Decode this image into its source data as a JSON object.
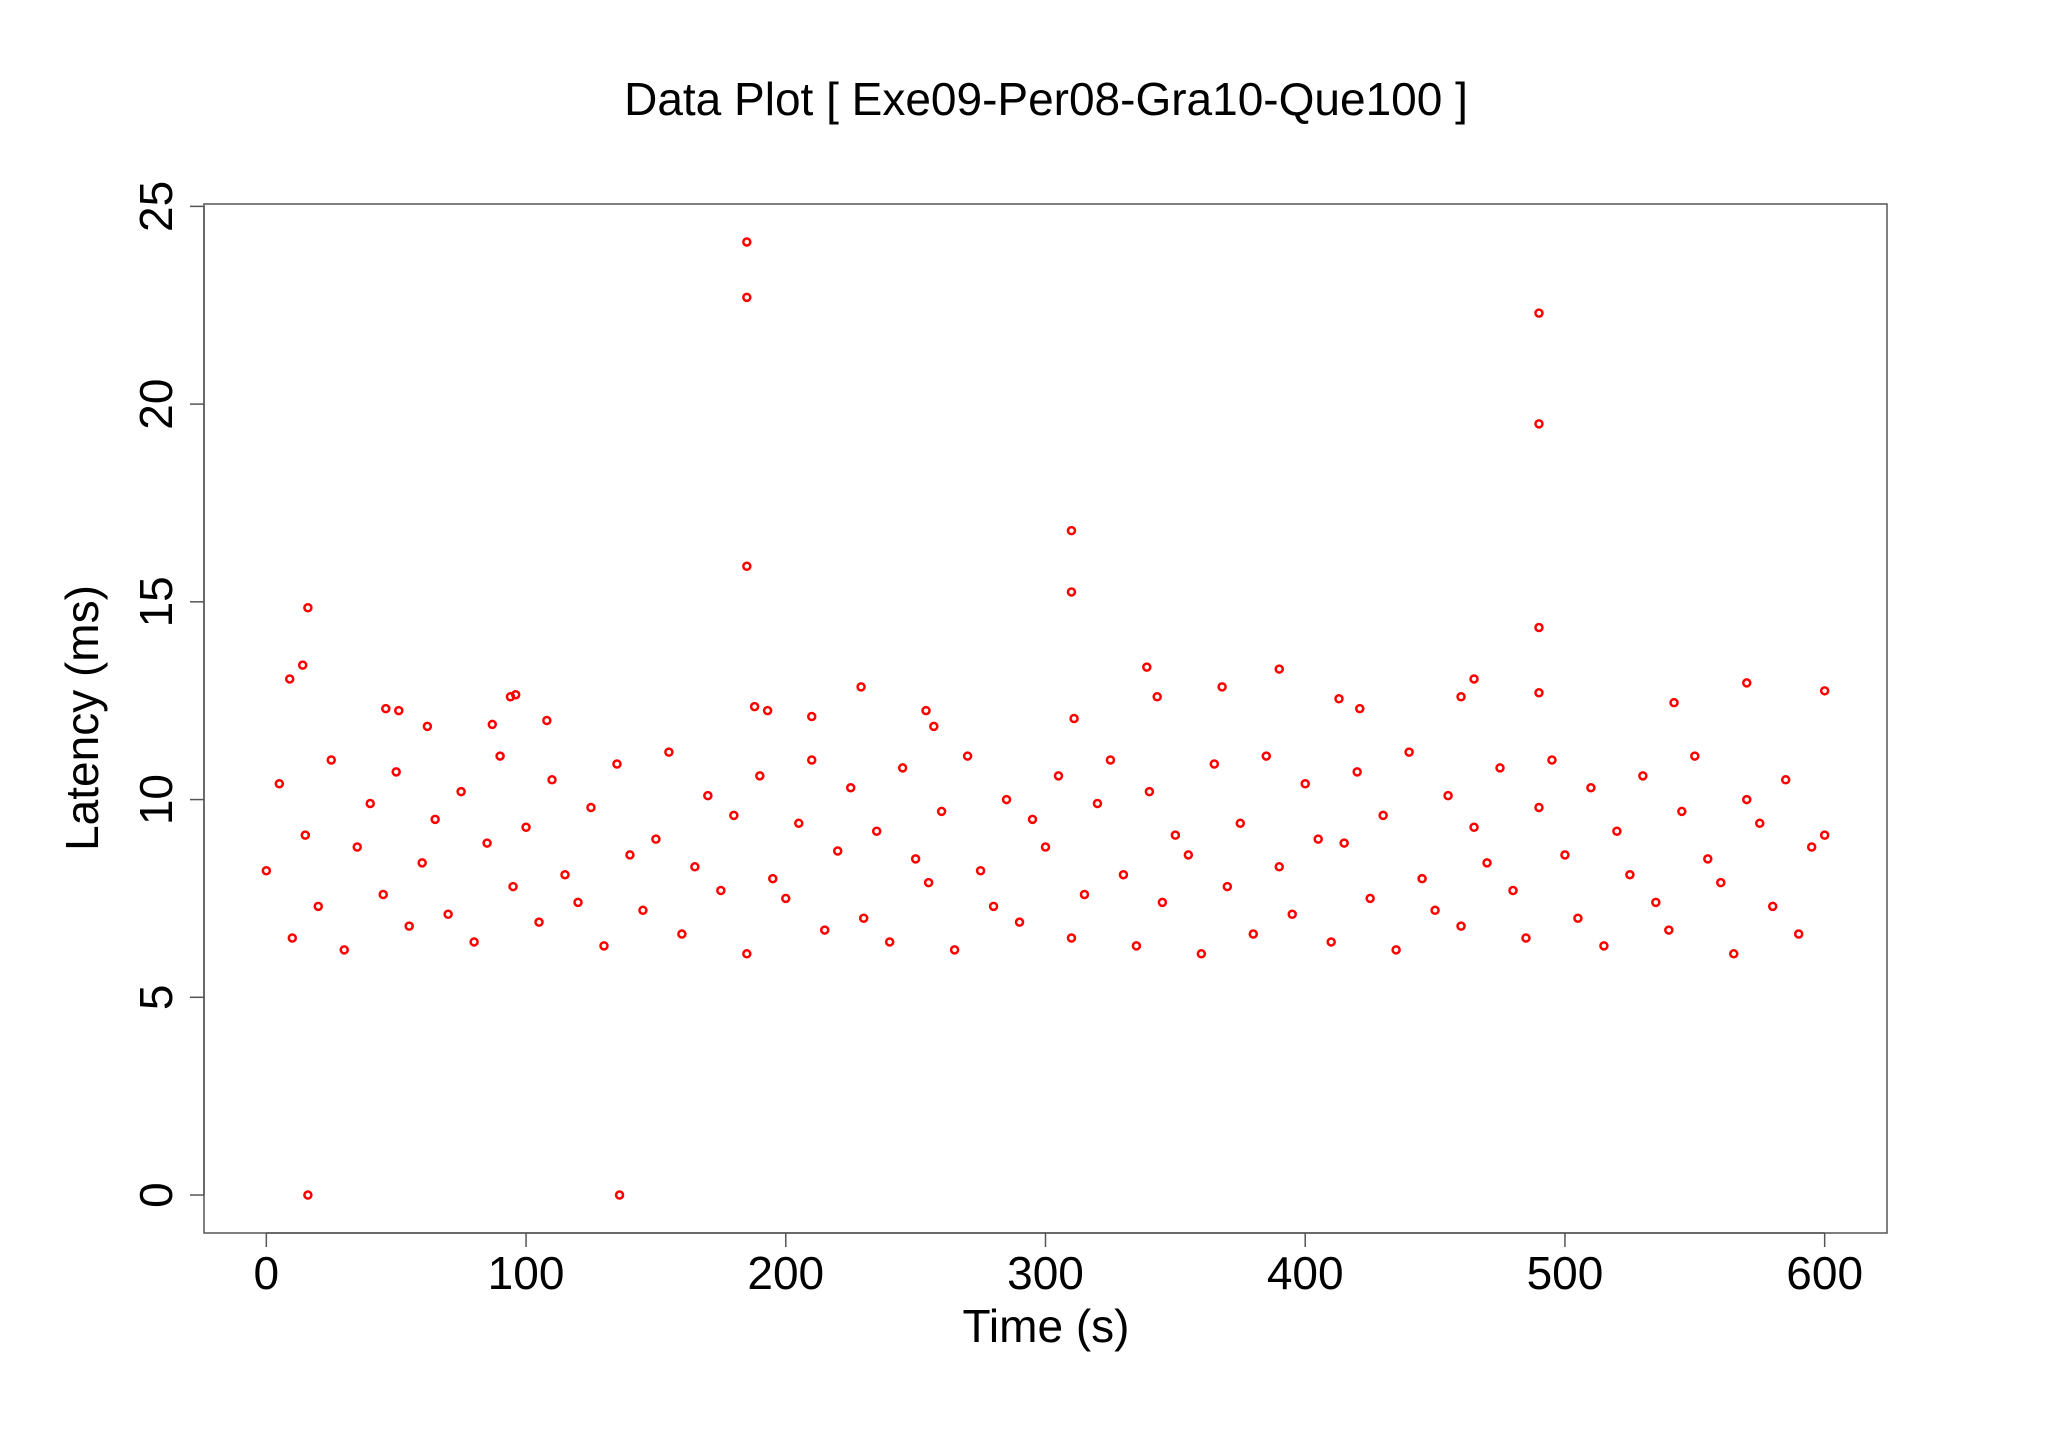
{
  "chart_data": {
    "type": "scatter",
    "title": "Data Plot [ Exe09-Per08-Gra10-Que100 ]",
    "x_label": "Time (s)",
    "y_label": "Latency (ms)",
    "color": "#ff0000",
    "xlim": [
      -24,
      624
    ],
    "ylim": [
      -0.96,
      25.06
    ],
    "xticks": [
      0,
      100,
      200,
      300,
      400,
      500,
      600
    ],
    "yticks": [
      0,
      5,
      10,
      15,
      20,
      25
    ],
    "x": [
      0,
      5,
      10,
      15,
      20,
      25,
      30,
      35,
      40,
      45,
      50,
      55,
      60,
      65,
      70,
      75,
      80,
      85,
      90,
      95,
      100,
      105,
      110,
      115,
      120,
      125,
      130,
      135,
      140,
      145,
      150,
      155,
      160,
      165,
      170,
      175,
      180,
      185,
      190,
      195,
      200,
      205,
      210,
      215,
      220,
      225,
      230,
      235,
      240,
      245,
      250,
      255,
      260,
      265,
      270,
      275,
      280,
      285,
      290,
      295,
      300,
      305,
      310,
      315,
      320,
      325,
      330,
      335,
      340,
      345,
      350,
      355,
      360,
      365,
      370,
      375,
      380,
      385,
      390,
      395,
      400,
      405,
      410,
      415,
      420,
      425,
      430,
      435,
      440,
      445,
      450,
      455,
      460,
      465,
      470,
      475,
      480,
      485,
      490,
      495,
      500,
      505,
      510,
      515,
      520,
      525,
      530,
      535,
      540,
      545,
      550,
      555,
      560,
      565,
      570,
      575,
      580,
      585,
      590,
      595,
      600,
      16,
      136,
      16,
      14,
      9,
      46,
      51,
      94,
      96,
      185,
      185,
      185,
      188,
      193,
      229,
      310,
      310,
      311,
      339,
      343,
      368,
      390,
      413,
      421,
      465,
      460,
      490,
      490,
      490,
      490,
      542,
      570,
      600,
      210,
      254,
      257,
      108,
      87,
      62
    ],
    "values": [
      8.2,
      10.4,
      6.5,
      9.1,
      7.3,
      11.0,
      6.2,
      8.8,
      9.9,
      7.6,
      10.7,
      6.8,
      8.4,
      9.5,
      7.1,
      10.2,
      6.4,
      8.9,
      11.1,
      7.8,
      9.3,
      6.9,
      10.5,
      8.1,
      7.4,
      9.8,
      6.3,
      10.9,
      8.6,
      7.2,
      9.0,
      11.2,
      6.6,
      8.3,
      10.1,
      7.7,
      9.6,
      6.1,
      10.6,
      8.0,
      7.5,
      9.4,
      11.0,
      6.7,
      8.7,
      10.3,
      7.0,
      9.2,
      6.4,
      10.8,
      8.5,
      7.9,
      9.7,
      6.2,
      11.1,
      8.2,
      7.3,
      10.0,
      6.9,
      9.5,
      8.8,
      10.6,
      6.5,
      7.6,
      9.9,
      11.0,
      8.1,
      6.3,
      10.2,
      7.4,
      9.1,
      8.6,
      6.1,
      10.9,
      7.8,
      9.4,
      6.6,
      11.1,
      8.3,
      7.1,
      10.4,
      9.0,
      6.4,
      8.9,
      10.7,
      7.5,
      9.6,
      6.2,
      11.2,
      8.0,
      7.2,
      10.1,
      6.8,
      9.3,
      8.4,
      10.8,
      7.7,
      6.5,
      9.8,
      11.0,
      8.6,
      7.0,
      10.3,
      6.3,
      9.2,
      8.1,
      10.6,
      7.4,
      6.7,
      9.7,
      11.1,
      8.5,
      7.9,
      6.1,
      10.0,
      9.4,
      7.3,
      10.5,
      6.6,
      8.8,
      9.1,
      0,
      0,
      14.85,
      13.4,
      13.05,
      12.3,
      12.25,
      12.6,
      12.65,
      24.1,
      22.7,
      15.9,
      12.35,
      12.25,
      12.85,
      16.8,
      15.25,
      12.05,
      13.35,
      12.6,
      12.85,
      13.3,
      12.55,
      12.3,
      13.05,
      12.6,
      22.3,
      19.5,
      14.35,
      12.7,
      12.45,
      12.95,
      12.75,
      12.1,
      12.25,
      11.85,
      12.0,
      11.9,
      11.85
    ]
  }
}
